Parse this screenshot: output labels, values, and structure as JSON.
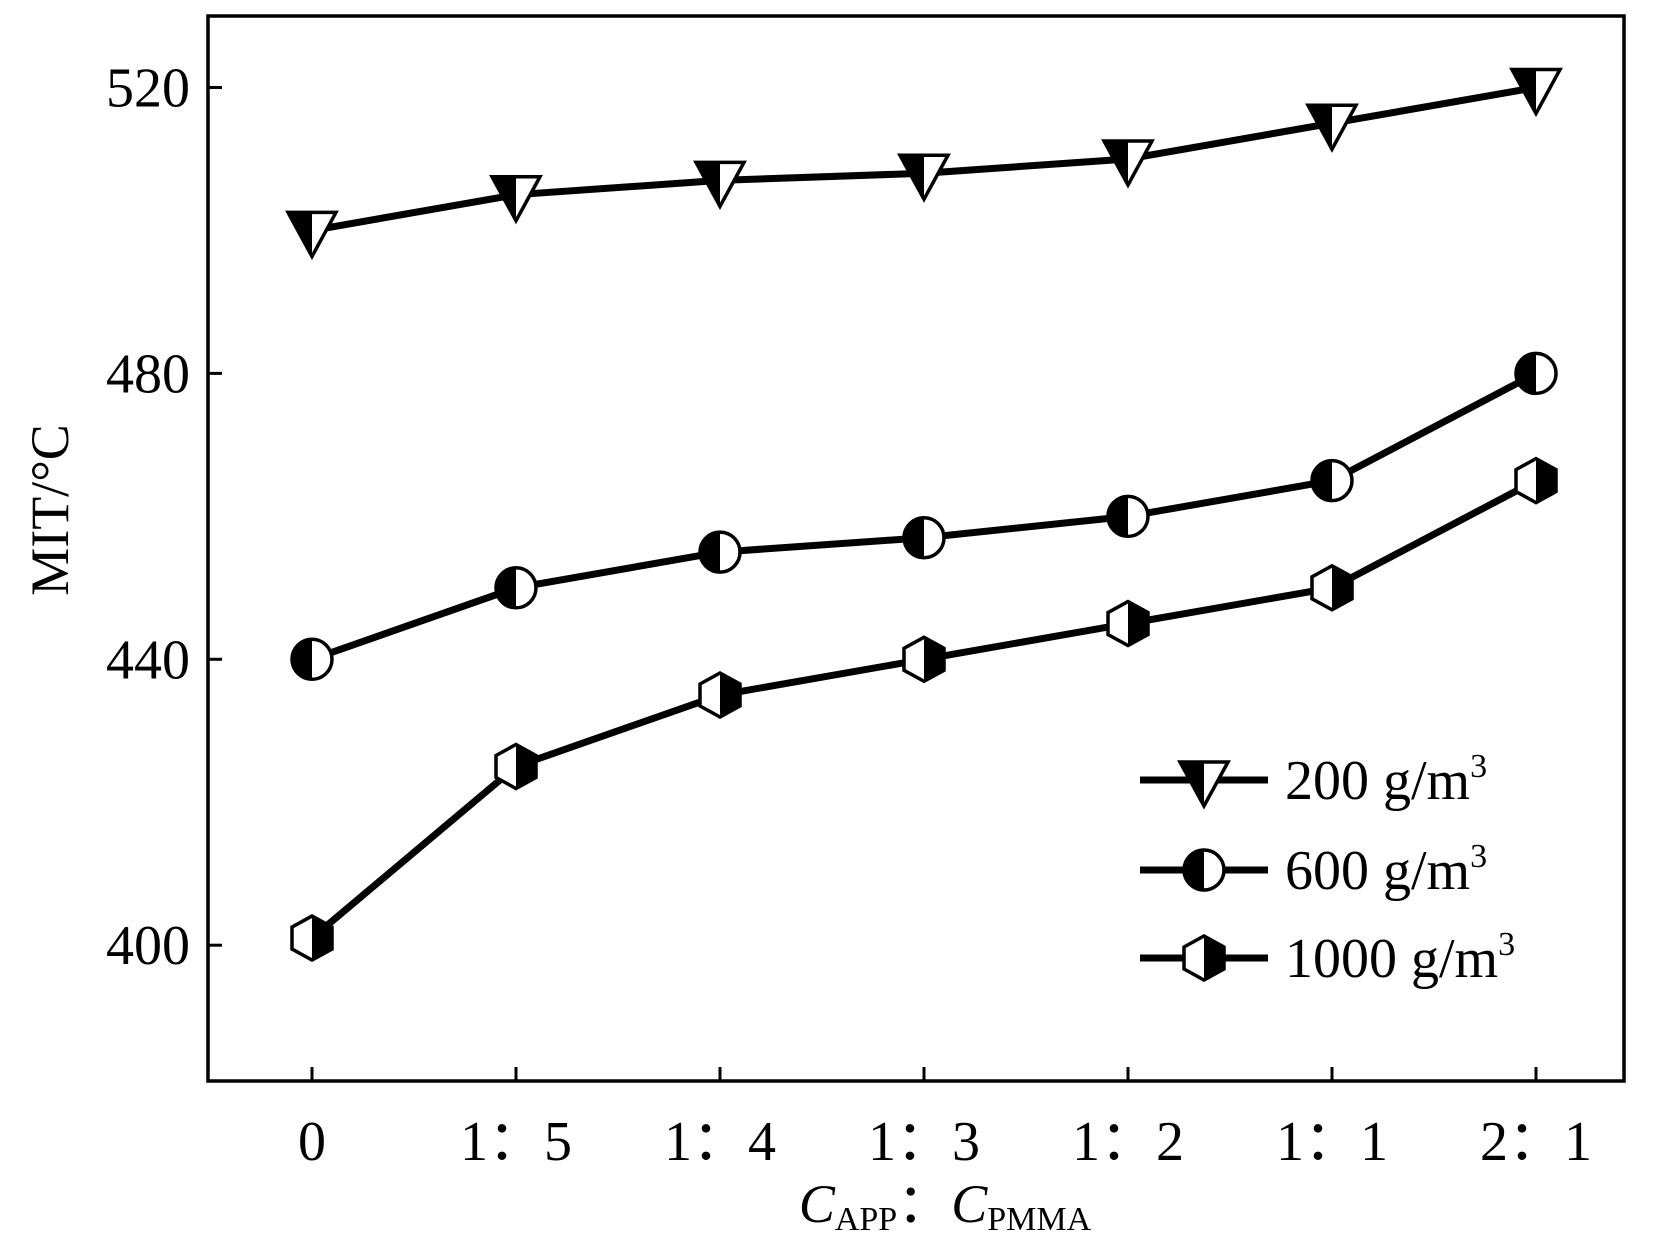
{
  "chart_data": {
    "type": "line",
    "title": "",
    "xlabel": {
      "main_a": "C",
      "sub_a": "APP",
      "separator": "：",
      "main_b": "C",
      "sub_b": "PMMA"
    },
    "ylabel": "MIT/°C",
    "categories": [
      "0",
      "1：5",
      "1：4",
      "1：3",
      "1：2",
      "1：1",
      "2：1"
    ],
    "ylim": [
      381,
      530
    ],
    "yticks": [
      400,
      440,
      480,
      520
    ],
    "ytick_labels": [
      "400",
      "440",
      "480",
      "520"
    ],
    "grid": false,
    "legend_position": "bottom-right",
    "series": [
      {
        "name": "200 g/m³",
        "label_main": "200 g/m",
        "label_sup": "3",
        "marker": "triangle-down-half",
        "values": [
          500,
          505,
          507,
          508,
          510,
          515,
          520
        ]
      },
      {
        "name": "600 g/m³",
        "label_main": "600 g/m",
        "label_sup": "3",
        "marker": "circle-left-half",
        "values": [
          440,
          450,
          455,
          457,
          460,
          465,
          480
        ]
      },
      {
        "name": "1000 g/m³",
        "label_main": "1000 g/m",
        "label_sup": "3",
        "marker": "hexagon-right-half",
        "values": [
          401,
          425,
          435,
          440,
          445,
          450,
          465
        ]
      }
    ]
  }
}
